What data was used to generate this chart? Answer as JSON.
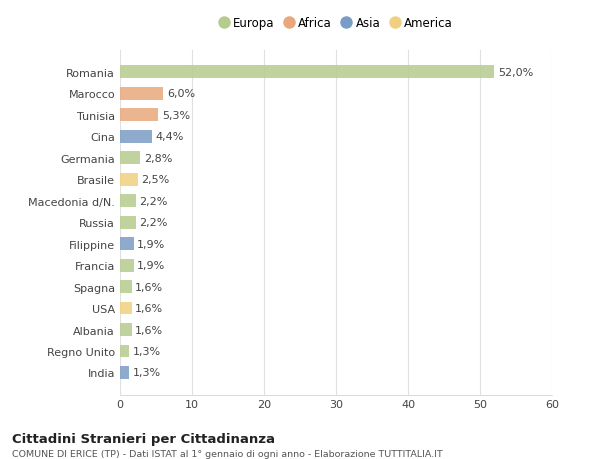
{
  "categories": [
    "Romania",
    "Marocco",
    "Tunisia",
    "Cina",
    "Germania",
    "Brasile",
    "Macedonia d/N.",
    "Russia",
    "Filippine",
    "Francia",
    "Spagna",
    "USA",
    "Albania",
    "Regno Unito",
    "India"
  ],
  "values": [
    52.0,
    6.0,
    5.3,
    4.4,
    2.8,
    2.5,
    2.2,
    2.2,
    1.9,
    1.9,
    1.6,
    1.6,
    1.6,
    1.3,
    1.3
  ],
  "labels": [
    "52,0%",
    "6,0%",
    "5,3%",
    "4,4%",
    "2,8%",
    "2,5%",
    "2,2%",
    "2,2%",
    "1,9%",
    "1,9%",
    "1,6%",
    "1,6%",
    "1,6%",
    "1,3%",
    "1,3%"
  ],
  "bar_colors": [
    "#b5cc8e",
    "#e8a87c",
    "#e8a87c",
    "#7a9dc5",
    "#b5cc8e",
    "#f0d080",
    "#b5cc8e",
    "#b5cc8e",
    "#7a9dc5",
    "#b5cc8e",
    "#b5cc8e",
    "#f0d080",
    "#b5cc8e",
    "#b5cc8e",
    "#7a9dc5"
  ],
  "legend": [
    {
      "label": "Europa",
      "color": "#b5cc8e"
    },
    {
      "label": "Africa",
      "color": "#e8a87c"
    },
    {
      "label": "Asia",
      "color": "#7a9dc5"
    },
    {
      "label": "America",
      "color": "#f0d080"
    }
  ],
  "xlim": [
    0,
    60
  ],
  "xticks": [
    0,
    10,
    20,
    30,
    40,
    50,
    60
  ],
  "title": "Cittadini Stranieri per Cittadinanza",
  "subtitle": "COMUNE DI ERICE (TP) - Dati ISTAT al 1° gennaio di ogni anno - Elaborazione TUTTITALIA.IT",
  "bg_color": "#ffffff",
  "plot_bg_color": "#ffffff",
  "grid_color": "#e0e0e0",
  "label_fontsize": 8.0,
  "tick_fontsize": 8.0,
  "bar_height": 0.6
}
